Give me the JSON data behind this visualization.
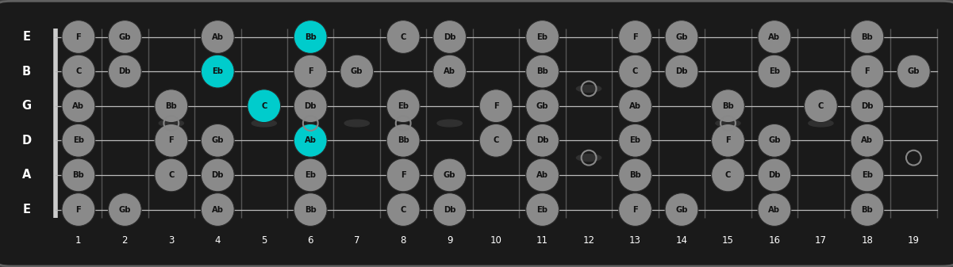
{
  "bg_color": "#404040",
  "fretboard_color": "#1a1a1a",
  "num_frets": 19,
  "num_strings": 6,
  "string_names_top_to_bottom": [
    "E",
    "B",
    "G",
    "D",
    "A",
    "E"
  ],
  "note_color_normal": "#8a8a8a",
  "note_color_highlight": "#00cccc",
  "note_text_color": "#111111",
  "open_circle_color": "#888888",
  "notes": {
    "0": {
      "1": "F",
      "2": "Gb",
      "4": "Ab",
      "6": "Bb",
      "8": "C",
      "9": "Db",
      "11": "Eb",
      "13": "F",
      "14": "Gb",
      "16": "Ab",
      "18": "Bb"
    },
    "1": {
      "1": "C",
      "2": "Db",
      "4": "Eb",
      "6": "F",
      "7": "Gb",
      "9": "Ab",
      "11": "Bb",
      "13": "C",
      "14": "Db",
      "16": "Eb",
      "18": "F",
      "19": "Gb"
    },
    "2": {
      "1": "Ab",
      "3": "Bb",
      "5": "C",
      "6": "Db",
      "8": "Eb",
      "10": "F",
      "11": "Gb",
      "13": "Ab",
      "15": "Bb",
      "17": "C",
      "18": "Db"
    },
    "3": {
      "1": "Eb",
      "3": "F",
      "4": "Gb",
      "6": "Ab",
      "8": "Bb",
      "10": "C",
      "11": "Db",
      "13": "Eb",
      "15": "F",
      "16": "Gb",
      "18": "Ab"
    },
    "4": {
      "1": "Bb",
      "3": "C",
      "4": "Db",
      "6": "Eb",
      "8": "F",
      "9": "Gb",
      "11": "Ab",
      "13": "Bb",
      "15": "C",
      "16": "Db",
      "18": "Eb"
    },
    "5": {
      "1": "F",
      "2": "Gb",
      "4": "Ab",
      "6": "Bb",
      "8": "C",
      "9": "Db",
      "11": "Eb",
      "13": "F",
      "14": "Gb",
      "16": "Ab",
      "18": "Bb"
    }
  },
  "highlights": [
    {
      "string": 0,
      "fret": 6,
      "note": "Bb"
    },
    {
      "string": 1,
      "fret": 4,
      "note": "Eb"
    },
    {
      "string": 2,
      "fret": 5,
      "note": "C"
    },
    {
      "string": 3,
      "fret": 6,
      "note": "Ab"
    }
  ],
  "open_circles_between_strings": [
    {
      "between": [
        2,
        3
      ],
      "fret": 3
    },
    {
      "between": [
        2,
        3
      ],
      "fret": 6
    },
    {
      "between": [
        2,
        3
      ],
      "fret": 8
    },
    {
      "between": [
        2,
        3
      ],
      "fret": 15
    },
    {
      "between": [
        1,
        2
      ],
      "fret": 12
    },
    {
      "between": [
        3,
        4
      ],
      "fret": 12
    },
    {
      "between": [
        3,
        4
      ],
      "fret": 19
    }
  ],
  "fret_markers": [
    3,
    5,
    7,
    9,
    15,
    17
  ],
  "double_dot_fret": 12
}
